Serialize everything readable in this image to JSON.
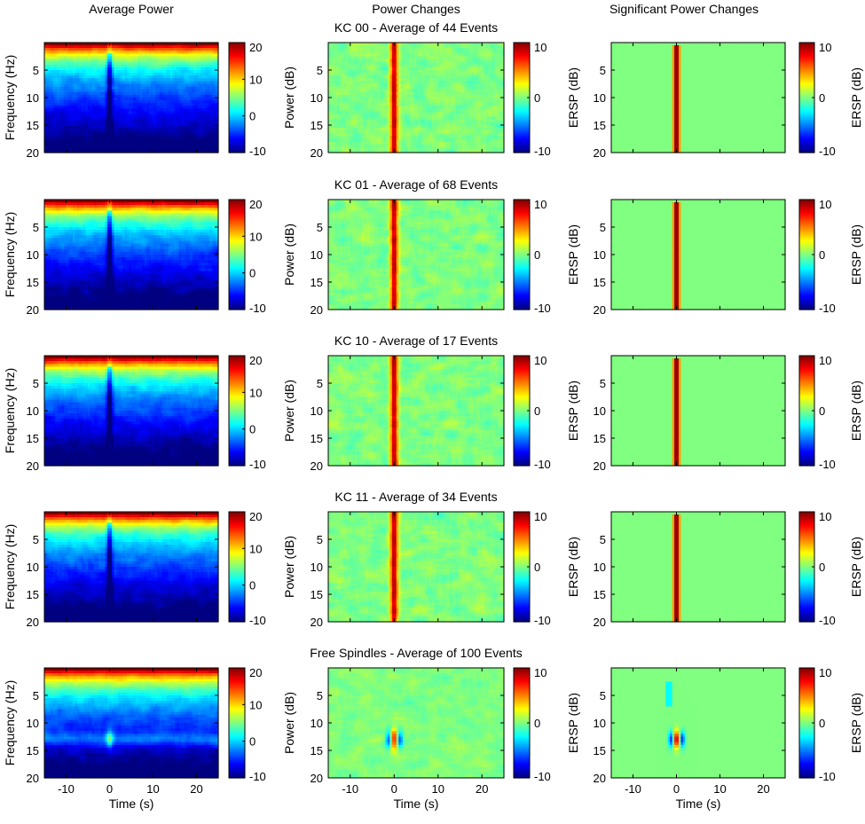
{
  "figure": {
    "column_titles": [
      "Average Power",
      "Power Changes",
      "Significant Power Changes"
    ],
    "row_titles": [
      "",
      "KC 00 - Average of 44 Events",
      "KC 01 - Average of 68 Events",
      "KC 10 - Average of 17 Events",
      "KC 11 - Average of 34 Events",
      "Free Spindles - Average of 100 Events"
    ]
  },
  "chart_data": {
    "type": "heatmap",
    "layout": "5 rows x 3 columns of time-frequency spectrograms",
    "colormap": "jet",
    "columns": [
      {
        "title": "Average Power",
        "ylabel": "Frequency (Hz)",
        "colorbar_label": "",
        "clim": [
          -10,
          20
        ],
        "colorbar_ticks": [
          -10,
          0,
          10,
          20
        ]
      },
      {
        "title": "Power Changes",
        "ylabel": "Power (dB)",
        "colorbar_label": "ERSP (dB)",
        "clim": [
          -10,
          10
        ],
        "colorbar_ticks": [
          -10,
          0,
          10
        ]
      },
      {
        "title": "Significant Power Changes",
        "ylabel": "",
        "colorbar_label": "ERSP (dB)",
        "clim": [
          -10,
          10
        ],
        "colorbar_ticks": [
          -10,
          0,
          10
        ]
      }
    ],
    "rows": [
      {
        "title": "KC 00 - Average of 44 Events",
        "type": "kc",
        "events": 44
      },
      {
        "title": "KC 01 - Average of 68 Events",
        "type": "kc",
        "events": 68
      },
      {
        "title": "KC 10 - Average of 17 Events",
        "type": "kc",
        "events": 17
      },
      {
        "title": "KC 11 - Average of 34 Events",
        "type": "kc",
        "events": 34
      },
      {
        "title": "Free Spindles - Average of 100 Events",
        "type": "spindle",
        "events": 100
      }
    ],
    "xlabel": "Time (s)",
    "xlim": [
      -15,
      25
    ],
    "xticks": [
      -10,
      0,
      10,
      20
    ],
    "ylim": [
      0,
      20
    ],
    "yticks": [
      5,
      10,
      15,
      20
    ],
    "y_reversed": true
  }
}
